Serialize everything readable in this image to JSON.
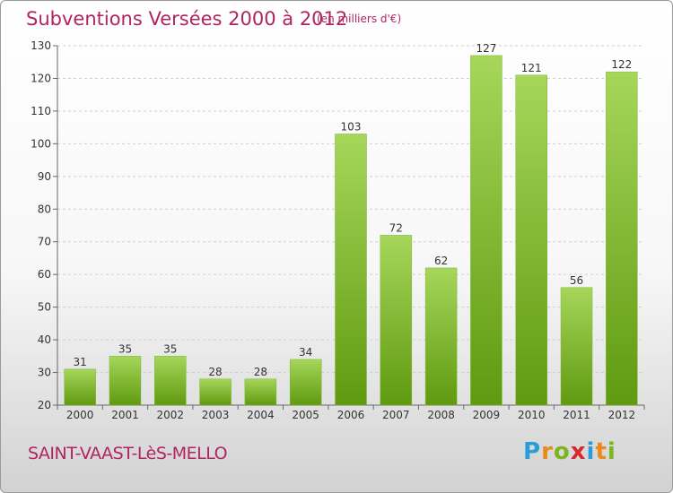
{
  "header": {
    "title": "Subventions Versées 2000 à 2012",
    "subtitle": "(en milliers d'€)"
  },
  "footer": {
    "town": "SAINT-VAAST-LèS-MELLO",
    "logo": {
      "letters": [
        "P",
        "r",
        "o",
        "x",
        "i",
        "t",
        "i"
      ],
      "colors": [
        "#2a9cd6",
        "#e98a1c",
        "#7cb51f",
        "#d8282e",
        "#2a9cd6",
        "#e98a1c",
        "#7cb51f"
      ]
    }
  },
  "colors": {
    "bar_top": "#a6d65a",
    "bar_bottom": "#5f9a10",
    "title": "#b0245f"
  },
  "chart_data": {
    "type": "bar",
    "categories": [
      "2000",
      "2001",
      "2002",
      "2003",
      "2004",
      "2005",
      "2006",
      "2007",
      "2008",
      "2009",
      "2010",
      "2011",
      "2012"
    ],
    "values": [
      31,
      35,
      35,
      28,
      28,
      34,
      103,
      72,
      62,
      127,
      121,
      56,
      122
    ],
    "ylim": [
      20,
      130
    ],
    "yticks": [
      20,
      30,
      40,
      50,
      60,
      70,
      80,
      90,
      100,
      110,
      120,
      130
    ],
    "grid": true,
    "data_labels": true
  }
}
